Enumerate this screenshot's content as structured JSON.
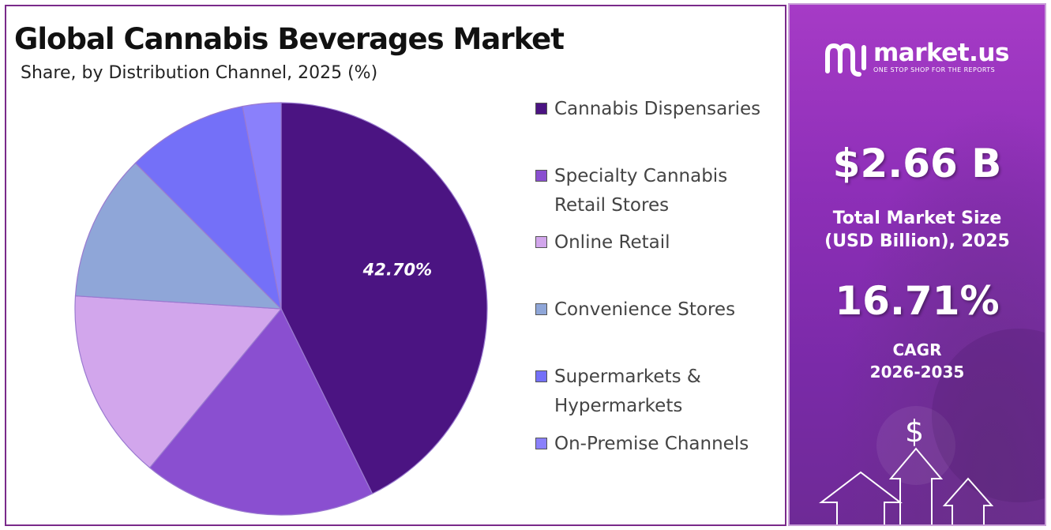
{
  "title": "Global  Cannabis Beverages Market",
  "subtitle": "Share, by Distribution Channel, 2025 (%)",
  "chart_data": {
    "type": "pie",
    "title": "Global  Cannabis Beverages Market",
    "subtitle": "Share, by Distribution Channel, 2025 (%)",
    "categories": [
      "Cannabis Dispensaries",
      "Specialty Cannabis Retail Stores",
      "Online Retail",
      "Convenience Stores",
      "Supermarkets & Hypermarkets",
      "On-Premise Channels"
    ],
    "values": [
      42.7,
      18.3,
      15.0,
      11.5,
      9.5,
      3.0
    ],
    "colors": [
      "#4b1482",
      "#8a4fd0",
      "#d2a6ec",
      "#8fa6d8",
      "#7470f8",
      "#8a80fb"
    ],
    "data_labels": [
      "42.70%",
      "",
      "",
      "",
      "",
      ""
    ],
    "legend_position": "right"
  },
  "legend": [
    {
      "label": "Cannabis Dispensaries",
      "color": "#4b1482"
    },
    {
      "label": "Specialty Cannabis Retail Stores",
      "color": "#8a4fd0"
    },
    {
      "label": "Online Retail",
      "color": "#d2a6ec"
    },
    {
      "label": "Convenience Stores",
      "color": "#8fa6d8"
    },
    {
      "label": "Supermarkets & Hypermarkets",
      "color": "#7470f8"
    },
    {
      "label": "On-Premise Channels",
      "color": "#8a80fb"
    }
  ],
  "brand": {
    "name": "market.us",
    "tagline": "ONE STOP SHOP FOR THE REPORTS"
  },
  "stats": {
    "market_size_value": "$2.66 B",
    "market_size_label_1": "Total Market Size",
    "market_size_label_2": "(USD Billion), 2025",
    "cagr_value": "16.71%",
    "cagr_label": "CAGR",
    "cagr_period": "2026-2035"
  },
  "icons": {
    "dollar": "$"
  },
  "accent_color": "#8e2fb8"
}
